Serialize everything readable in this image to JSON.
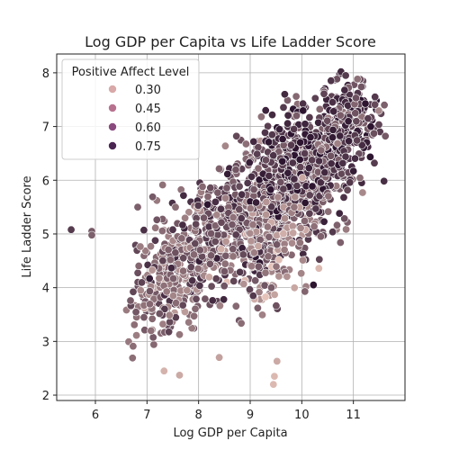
{
  "chart_data": {
    "type": "scatter",
    "title": "Log GDP per Capita vs Life Ladder Score",
    "xlabel": "Log GDP per Capita",
    "ylabel": "Life Ladder Score",
    "xlim": [
      5.25,
      12.0
    ],
    "ylim": [
      1.9,
      8.35
    ],
    "xticks": [
      6,
      7,
      8,
      9,
      10,
      11
    ],
    "yticks": [
      2,
      3,
      4,
      5,
      6,
      7,
      8
    ],
    "grid": true,
    "legend": {
      "title": "Positive Affect Level",
      "placement": "top-left",
      "entries": [
        {
          "label": "0.30",
          "color": "#d9a8a8"
        },
        {
          "label": "0.45",
          "color": "#b87290"
        },
        {
          "label": "0.60",
          "color": "#8a4a7e"
        },
        {
          "label": "0.75",
          "color": "#4b2552"
        }
      ]
    },
    "hue_scale": {
      "min": 0.25,
      "max": 0.85,
      "low_color": "#ebc8bd",
      "high_color": "#2d1530"
    },
    "clusters": [
      {
        "cx": 7.5,
        "cy": 4.2,
        "sx": 0.45,
        "sy": 0.55,
        "n": 330,
        "hue": 0.58
      },
      {
        "cx": 8.5,
        "cy": 5.2,
        "sx": 0.5,
        "sy": 0.6,
        "n": 320,
        "hue": 0.64
      },
      {
        "cx": 9.4,
        "cy": 5.5,
        "sx": 0.45,
        "sy": 0.65,
        "n": 330,
        "hue": 0.66
      },
      {
        "cx": 10.2,
        "cy": 5.9,
        "sx": 0.35,
        "sy": 0.55,
        "n": 260,
        "hue": 0.64
      },
      {
        "cx": 10.8,
        "cy": 6.9,
        "sx": 0.35,
        "sy": 0.5,
        "n": 280,
        "hue": 0.72
      },
      {
        "cx": 9.7,
        "cy": 6.4,
        "sx": 0.3,
        "sy": 0.45,
        "n": 140,
        "hue": 0.78
      },
      {
        "cx": 9.5,
        "cy": 4.6,
        "sx": 0.35,
        "sy": 0.5,
        "n": 90,
        "hue": 0.48
      }
    ],
    "points": [
      {
        "x": 5.53,
        "y": 5.08,
        "h": 0.72
      },
      {
        "x": 5.93,
        "y": 5.05,
        "h": 0.62
      },
      {
        "x": 5.93,
        "y": 4.98,
        "h": 0.6
      },
      {
        "x": 6.68,
        "y": 3.76,
        "h": 0.62
      },
      {
        "x": 6.73,
        "y": 2.91,
        "h": 0.55
      },
      {
        "x": 6.72,
        "y": 2.69,
        "h": 0.55
      },
      {
        "x": 6.82,
        "y": 5.5,
        "h": 0.6
      },
      {
        "x": 7.11,
        "y": 5.69,
        "h": 0.62
      },
      {
        "x": 7.33,
        "y": 2.45,
        "h": 0.32
      },
      {
        "x": 7.63,
        "y": 2.37,
        "h": 0.35
      },
      {
        "x": 8.4,
        "y": 2.7,
        "h": 0.38
      },
      {
        "x": 9.47,
        "y": 2.35,
        "h": 0.3
      },
      {
        "x": 9.45,
        "y": 2.2,
        "h": 0.3
      },
      {
        "x": 9.52,
        "y": 2.63,
        "h": 0.35
      },
      {
        "x": 10.33,
        "y": 4.36,
        "h": 0.3
      },
      {
        "x": 11.6,
        "y": 7.4,
        "h": 0.6
      },
      {
        "x": 11.62,
        "y": 6.82,
        "h": 0.62
      },
      {
        "x": 9.67,
        "y": 7.6,
        "h": 0.78
      },
      {
        "x": 9.3,
        "y": 7.3,
        "h": 0.8
      },
      {
        "x": 10.76,
        "y": 8.02,
        "h": 0.78
      },
      {
        "x": 10.85,
        "y": 7.95,
        "h": 0.72
      },
      {
        "x": 10.75,
        "y": 4.84,
        "h": 0.6
      }
    ]
  }
}
